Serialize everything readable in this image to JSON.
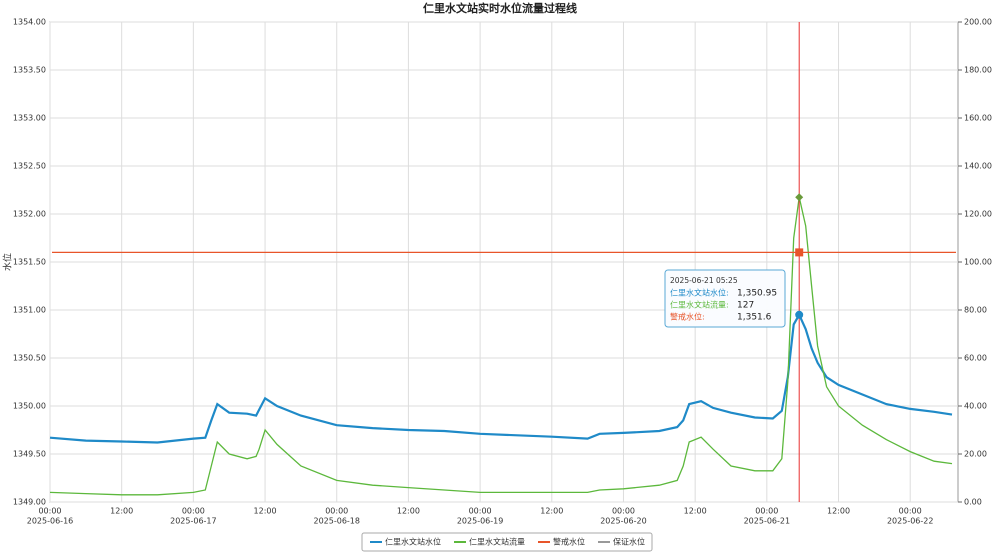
{
  "chart_data": {
    "type": "line",
    "title": "仁里水文站实时水位流量过程线",
    "ylabel": "水位",
    "x": [
      "2025-06-16 00:00",
      "2025-06-16 06:00",
      "2025-06-16 12:00",
      "2025-06-16 18:00",
      "2025-06-17 00:00",
      "2025-06-17 02:00",
      "2025-06-17 03:00",
      "2025-06-17 04:00",
      "2025-06-17 06:00",
      "2025-06-17 09:00",
      "2025-06-17 10:30",
      "2025-06-17 11:00",
      "2025-06-17 12:00",
      "2025-06-17 14:00",
      "2025-06-17 18:00",
      "2025-06-18 00:00",
      "2025-06-18 06:00",
      "2025-06-18 12:00",
      "2025-06-18 18:00",
      "2025-06-19 00:00",
      "2025-06-19 12:00",
      "2025-06-19 18:00",
      "2025-06-19 20:00",
      "2025-06-20 00:00",
      "2025-06-20 06:00",
      "2025-06-20 09:00",
      "2025-06-20 10:00",
      "2025-06-20 11:00",
      "2025-06-20 13:00",
      "2025-06-20 15:00",
      "2025-06-20 18:00",
      "2025-06-20 22:00",
      "2025-06-21 01:00",
      "2025-06-21 02:30",
      "2025-06-21 03:30",
      "2025-06-21 04:30",
      "2025-06-21 05:25",
      "2025-06-21 06:30",
      "2025-06-21 07:30",
      "2025-06-21 08:30",
      "2025-06-21 10:00",
      "2025-06-21 12:00",
      "2025-06-21 16:00",
      "2025-06-21 20:00",
      "2025-06-22 00:00",
      "2025-06-22 04:00",
      "2025-06-22 07:00"
    ],
    "series": [
      {
        "name": "仁里水文站水位",
        "color": "#1f8ac8",
        "values": [
          1349.67,
          1349.64,
          1349.63,
          1349.62,
          1349.66,
          1349.67,
          1349.85,
          1350.02,
          1349.93,
          1349.92,
          1349.9,
          1349.96,
          1350.08,
          1350.0,
          1349.9,
          1349.8,
          1349.77,
          1349.75,
          1349.74,
          1349.71,
          1349.68,
          1349.66,
          1349.71,
          1349.72,
          1349.74,
          1349.78,
          1349.85,
          1350.02,
          1350.05,
          1349.98,
          1349.93,
          1349.88,
          1349.87,
          1349.95,
          1350.3,
          1350.85,
          1350.95,
          1350.8,
          1350.6,
          1350.45,
          1350.3,
          1350.22,
          1350.12,
          1350.02,
          1349.97,
          1349.94,
          1349.91
        ]
      },
      {
        "name": "仁里水文站流量",
        "color": "#5cb83c",
        "axis": "y2",
        "values": [
          4,
          3.5,
          3,
          3,
          4,
          5,
          15,
          25,
          20,
          18,
          19,
          22,
          30,
          24,
          15,
          9,
          7,
          6,
          5,
          4,
          4,
          4,
          5,
          5.5,
          7,
          9,
          15,
          25,
          27,
          22,
          15,
          13,
          13,
          18,
          50,
          110,
          127,
          115,
          90,
          65,
          48,
          40,
          32,
          26,
          21,
          17,
          16
        ]
      },
      {
        "name": "警戒水位",
        "color": "#e8552a",
        "value": 1351.6
      },
      {
        "name": "保证水位",
        "color": "#999999"
      }
    ],
    "xlim": [
      "2025-06-16 00:00",
      "2025-06-22 08:00"
    ],
    "xticks": [
      {
        "value": "2025-06-16 00:00",
        "label": "00:00"
      },
      {
        "value": "2025-06-16 12:00",
        "label": "12:00"
      },
      {
        "value": "2025-06-17 00:00",
        "label": "00:00"
      },
      {
        "value": "2025-06-17 12:00",
        "label": "12:00"
      },
      {
        "value": "2025-06-18 00:00",
        "label": "00:00"
      },
      {
        "value": "2025-06-18 12:00",
        "label": "12:00"
      },
      {
        "value": "2025-06-19 00:00",
        "label": "00:00"
      },
      {
        "value": "2025-06-19 12:00",
        "label": "12:00"
      },
      {
        "value": "2025-06-20 00:00",
        "label": "00:00"
      },
      {
        "value": "2025-06-20 12:00",
        "label": "12:00"
      },
      {
        "value": "2025-06-21 00:00",
        "label": "00:00"
      },
      {
        "value": "2025-06-21 12:00",
        "label": "12:00"
      },
      {
        "value": "2025-06-22 00:00",
        "label": "00:00"
      }
    ],
    "xdate_ticks": [
      {
        "value": "2025-06-16 00:00",
        "label": "2025-06-16"
      },
      {
        "value": "2025-06-17 00:00",
        "label": "2025-06-17"
      },
      {
        "value": "2025-06-18 00:00",
        "label": "2025-06-18"
      },
      {
        "value": "2025-06-19 00:00",
        "label": "2025-06-19"
      },
      {
        "value": "2025-06-20 00:00",
        "label": "2025-06-20"
      },
      {
        "value": "2025-06-21 00:00",
        "label": "2025-06-21"
      },
      {
        "value": "2025-06-22 00:00",
        "label": "2025-06-22"
      }
    ],
    "ylim": [
      1349,
      1354
    ],
    "yticks": [
      {
        "value": 1349,
        "label": "1349.00"
      },
      {
        "value": 1349.5,
        "label": "1349.50"
      },
      {
        "value": 1350,
        "label": "1350.00"
      },
      {
        "value": 1350.5,
        "label": "1350.50"
      },
      {
        "value": 1351,
        "label": "1351.00"
      },
      {
        "value": 1351.5,
        "label": "1351.50"
      },
      {
        "value": 1352,
        "label": "1352.00"
      },
      {
        "value": 1352.5,
        "label": "1352.50"
      },
      {
        "value": 1353,
        "label": "1353.00"
      },
      {
        "value": 1353.5,
        "label": "1353.50"
      },
      {
        "value": 1354,
        "label": "1354.00"
      }
    ],
    "y2lim": [
      0,
      200
    ],
    "y2ticks": [
      {
        "value": 0,
        "label": "0.00"
      },
      {
        "value": 20,
        "label": "20.00"
      },
      {
        "value": 40,
        "label": "40.00"
      },
      {
        "value": 60,
        "label": "60.00"
      },
      {
        "value": 80,
        "label": "80.00"
      },
      {
        "value": 100,
        "label": "100.00"
      },
      {
        "value": 120,
        "label": "120.00"
      },
      {
        "value": 140,
        "label": "140.00"
      },
      {
        "value": 160,
        "label": "160.00"
      },
      {
        "value": 180,
        "label": "180.00"
      },
      {
        "value": 200,
        "label": "200.00"
      }
    ],
    "grid": true,
    "legend": "bottom",
    "tooltip": {
      "title": "2025-06-21 05:25",
      "x": "2025-06-21 05:25",
      "items": [
        {
          "name": "仁里水文站水位:",
          "value": 1350.95,
          "label": "1,350.95"
        },
        {
          "name": "仁里水文站流量:",
          "value": 127,
          "label": "127"
        },
        {
          "name": "警戒水位:",
          "value": 1351.6,
          "label": "1,351.6"
        }
      ]
    }
  }
}
